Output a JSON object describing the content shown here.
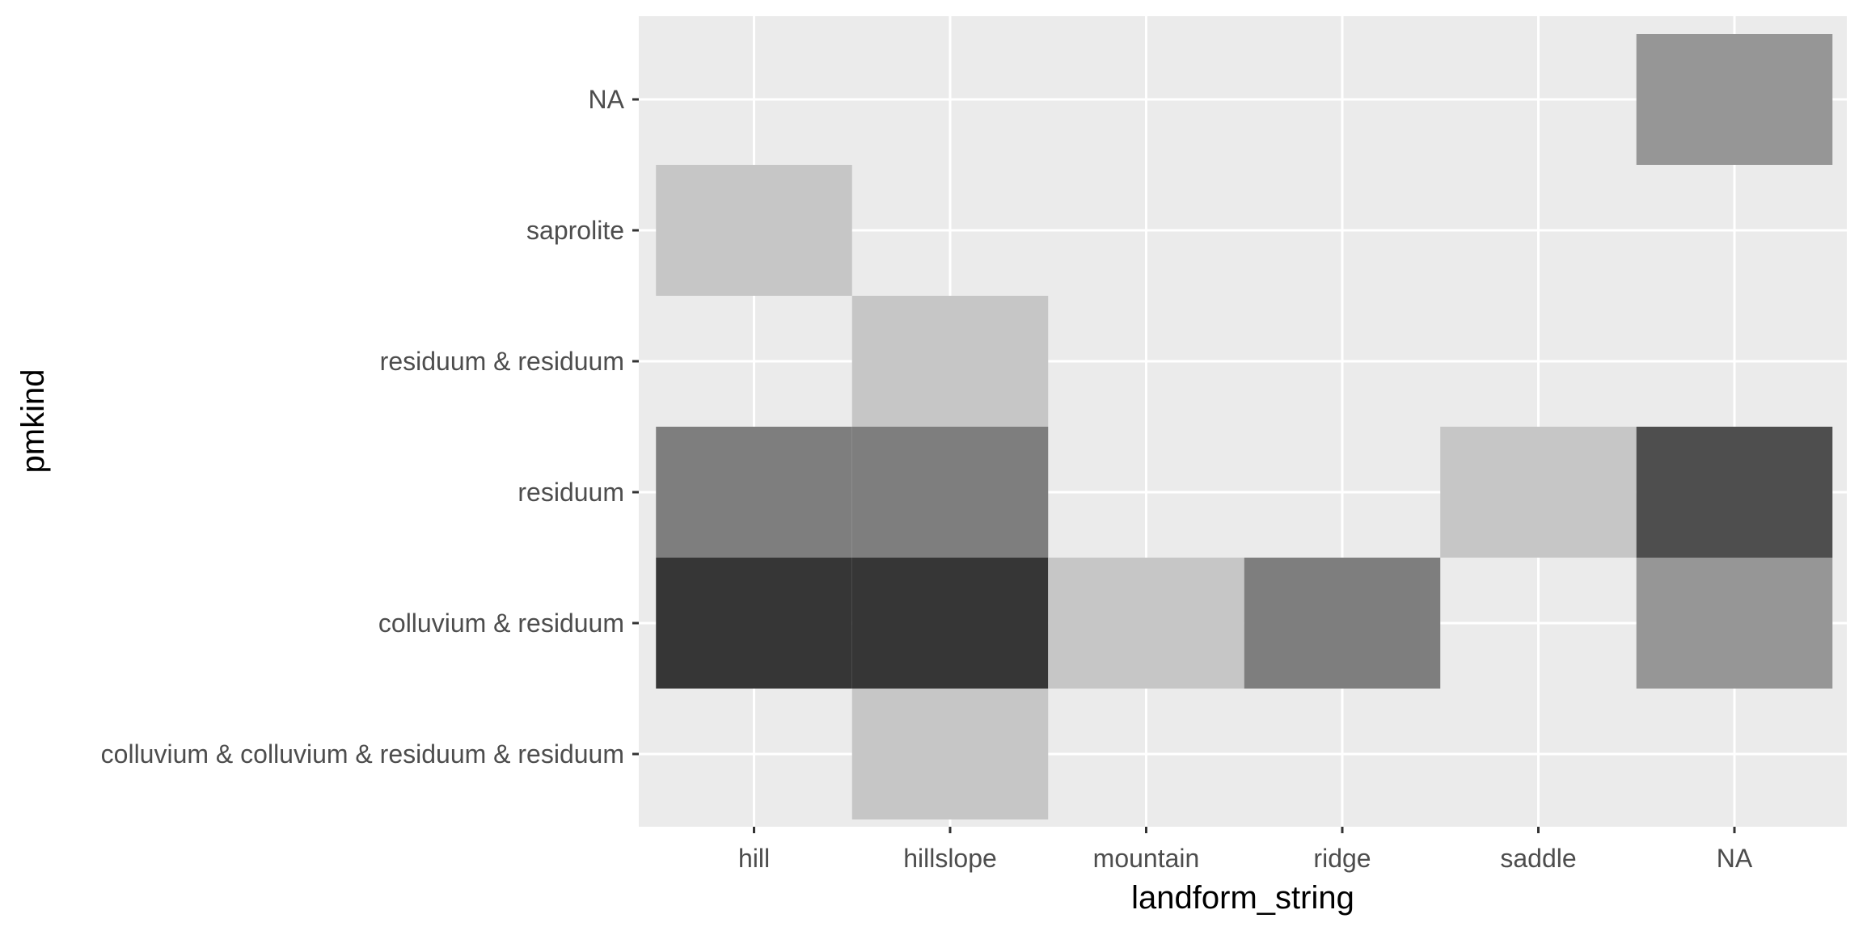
{
  "chart_data": {
    "type": "heatmap",
    "title": "",
    "xlabel": "landform_string",
    "ylabel": "pmkind",
    "x_categories": [
      "hill",
      "hillslope",
      "mountain",
      "ridge",
      "saddle",
      "NA"
    ],
    "y_categories": [
      "colluvium & colluvium & residuum & residuum",
      "colluvium & residuum",
      "residuum",
      "residuum & residuum",
      "saprolite",
      "NA"
    ],
    "cells": [
      {
        "x": "hillslope",
        "y": "colluvium & colluvium & residuum & residuum",
        "value": 1
      },
      {
        "x": "hill",
        "y": "colluvium & residuum",
        "value": 7
      },
      {
        "x": "hillslope",
        "y": "colluvium & residuum",
        "value": 7
      },
      {
        "x": "mountain",
        "y": "colluvium & residuum",
        "value": 1
      },
      {
        "x": "ridge",
        "y": "colluvium & residuum",
        "value": 4
      },
      {
        "x": "NA",
        "y": "colluvium & residuum",
        "value": 3
      },
      {
        "x": "hill",
        "y": "residuum",
        "value": 4
      },
      {
        "x": "hillslope",
        "y": "residuum",
        "value": 4
      },
      {
        "x": "saddle",
        "y": "residuum",
        "value": 1
      },
      {
        "x": "NA",
        "y": "residuum",
        "value": 6
      },
      {
        "x": "hillslope",
        "y": "residuum & residuum",
        "value": 1
      },
      {
        "x": "hill",
        "y": "saprolite",
        "value": 1
      },
      {
        "x": "NA",
        "y": "NA",
        "value": 3
      }
    ],
    "grid": true,
    "legend": "none",
    "colors": {
      "panel_background": "#ebebeb",
      "grid_line": "#ffffff",
      "tile_low": "#c6c6c6",
      "tile_high": "#363636",
      "tick_label": "#4d4d4d",
      "axis_title": "#000000"
    }
  }
}
